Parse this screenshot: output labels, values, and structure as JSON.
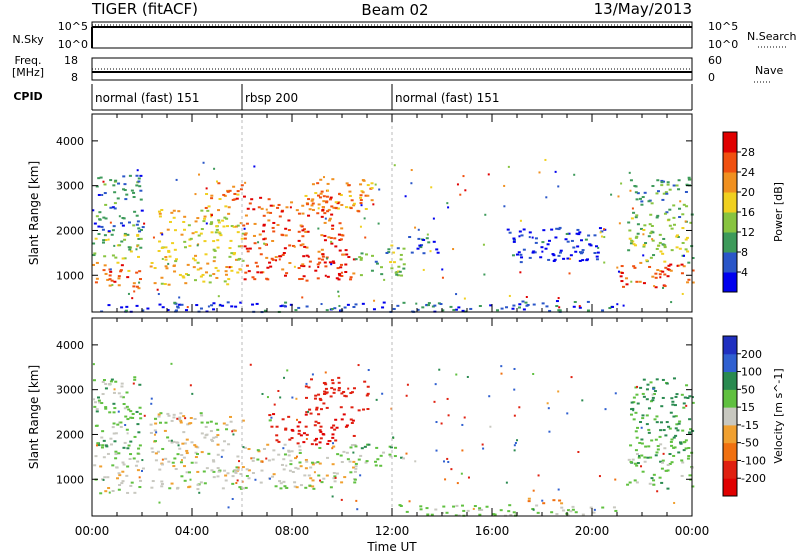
{
  "header": {
    "station": "TIGER (fitACF)",
    "beam": "Beam 02",
    "date": "13/May/2013"
  },
  "nsky_panel": {
    "left_label": "N.Sky",
    "right_label": "N.Search",
    "ytick_top": "10^5",
    "ytick_bottom": "10^0"
  },
  "freq_panel": {
    "left_label": "Freq.",
    "left_unit": "[MHz]",
    "ytick_left_top": "18",
    "ytick_left_bottom": "8",
    "right_label": "Nave",
    "ytick_right_top": "60",
    "ytick_right_bottom": "0"
  },
  "cpid": {
    "label": "CPID",
    "segments": [
      {
        "text": "normal (fast) 151",
        "start_ut": 0,
        "end_ut": 6
      },
      {
        "text": "rbsp 200",
        "start_ut": 6,
        "end_ut": 12
      },
      {
        "text": "normal (fast) 151",
        "start_ut": 12,
        "end_ut": 24
      }
    ]
  },
  "chart_data": [
    {
      "type": "heatmap",
      "title": "",
      "xlabel": "Time UT",
      "ylabel": "Slant Range [km]",
      "xlim": [
        0,
        24
      ],
      "ylim": [
        180,
        4600
      ],
      "x_ticks": [
        "00:00",
        "04:00",
        "08:00",
        "12:00",
        "16:00",
        "20:00",
        "00:00"
      ],
      "y_ticks": [
        1000,
        2000,
        3000,
        4000
      ],
      "colorbar": {
        "label": "Power [dB]",
        "ticks": [
          "4",
          "8",
          "12",
          "16",
          "20",
          "24",
          "28"
        ],
        "colors": [
          "#0000ee",
          "#2a56c8",
          "#3d9a5a",
          "#88c440",
          "#f0d020",
          "#f09020",
          "#f05010",
          "#e00000"
        ]
      },
      "blobs": [
        {
          "t0": 0.0,
          "t1": 2.0,
          "r0": 700,
          "r1": 1300,
          "v": 24
        },
        {
          "t0": 0.0,
          "t1": 2.0,
          "r0": 1300,
          "r1": 2000,
          "v": 14
        },
        {
          "t0": 0.0,
          "t1": 2.0,
          "r0": 2000,
          "r1": 3300,
          "v": 8
        },
        {
          "t0": 2.3,
          "t1": 6.0,
          "r0": 800,
          "r1": 1300,
          "v": 20
        },
        {
          "t0": 2.6,
          "t1": 6.0,
          "r0": 1300,
          "r1": 2500,
          "v": 18
        },
        {
          "t0": 4.5,
          "t1": 6.0,
          "r0": 2500,
          "r1": 3100,
          "v": 24
        },
        {
          "t0": 6.0,
          "t1": 10.5,
          "r0": 900,
          "r1": 1700,
          "v": 28
        },
        {
          "t0": 6.0,
          "t1": 10.0,
          "r0": 1700,
          "r1": 2800,
          "v": 26
        },
        {
          "t0": 8.5,
          "t1": 11.2,
          "r0": 2400,
          "r1": 3200,
          "v": 22
        },
        {
          "t0": 10.5,
          "t1": 12.5,
          "r0": 1000,
          "r1": 1700,
          "v": 12
        },
        {
          "t0": 12.5,
          "t1": 14.0,
          "r0": 1500,
          "r1": 1900,
          "v": 6
        },
        {
          "t0": 16.5,
          "t1": 20.5,
          "r0": 1300,
          "r1": 2100,
          "v": 4
        },
        {
          "t0": 12.0,
          "t1": 21.0,
          "r0": 200,
          "r1": 450,
          "v": 6
        },
        {
          "t0": 21.0,
          "t1": 24.0,
          "r0": 750,
          "r1": 1300,
          "v": 26
        },
        {
          "t0": 21.3,
          "t1": 24.0,
          "r0": 1300,
          "r1": 2300,
          "v": 14
        },
        {
          "t0": 21.5,
          "t1": 24.0,
          "r0": 2300,
          "r1": 3200,
          "v": 10
        },
        {
          "t0": 0.0,
          "t1": 12.0,
          "r0": 200,
          "r1": 420,
          "v": 4
        }
      ]
    },
    {
      "type": "heatmap",
      "title": "",
      "xlabel": "Time UT",
      "ylabel": "Slant Range [km]",
      "xlim": [
        0,
        24
      ],
      "ylim": [
        180,
        4600
      ],
      "x_ticks": [
        "00:00",
        "04:00",
        "08:00",
        "12:00",
        "16:00",
        "20:00",
        "00:00"
      ],
      "y_ticks": [
        1000,
        2000,
        3000,
        4000
      ],
      "colorbar": {
        "label": "Velocity [m s^-1]",
        "ticks": [
          "200",
          "100",
          "50",
          "15",
          "-15",
          "-50",
          "-100",
          "-200"
        ],
        "colors": [
          "#2030c0",
          "#3060d0",
          "#2a8a50",
          "#60c040",
          "#c8c8c0",
          "#f0a030",
          "#f07010",
          "#e02010",
          "#e00000"
        ]
      },
      "blobs": [
        {
          "t0": 0.0,
          "t1": 2.0,
          "r0": 700,
          "r1": 1600,
          "v": 0
        },
        {
          "t0": 0.0,
          "t1": 2.0,
          "r0": 1600,
          "r1": 3300,
          "v": 30
        },
        {
          "t0": 2.3,
          "t1": 6.0,
          "r0": 800,
          "r1": 2500,
          "v": 0
        },
        {
          "t0": 6.0,
          "t1": 10.5,
          "r0": 800,
          "r1": 1800,
          "v": 0
        },
        {
          "t0": 7.0,
          "t1": 10.5,
          "r0": 1800,
          "r1": 2500,
          "v": -200
        },
        {
          "t0": 8.5,
          "t1": 11.0,
          "r0": 2500,
          "r1": 3300,
          "v": -150
        },
        {
          "t0": 10.5,
          "t1": 12.5,
          "r0": 1300,
          "r1": 1800,
          "v": 30
        },
        {
          "t0": 12.0,
          "t1": 21.0,
          "r0": 200,
          "r1": 450,
          "v": 20
        },
        {
          "t0": 17.3,
          "t1": 18.8,
          "r0": 450,
          "r1": 600,
          "v": -60
        },
        {
          "t0": 21.3,
          "t1": 24.0,
          "r0": 750,
          "r1": 1900,
          "v": 30
        },
        {
          "t0": 21.5,
          "t1": 24.0,
          "r0": 1900,
          "r1": 3300,
          "v": 60
        }
      ]
    }
  ]
}
